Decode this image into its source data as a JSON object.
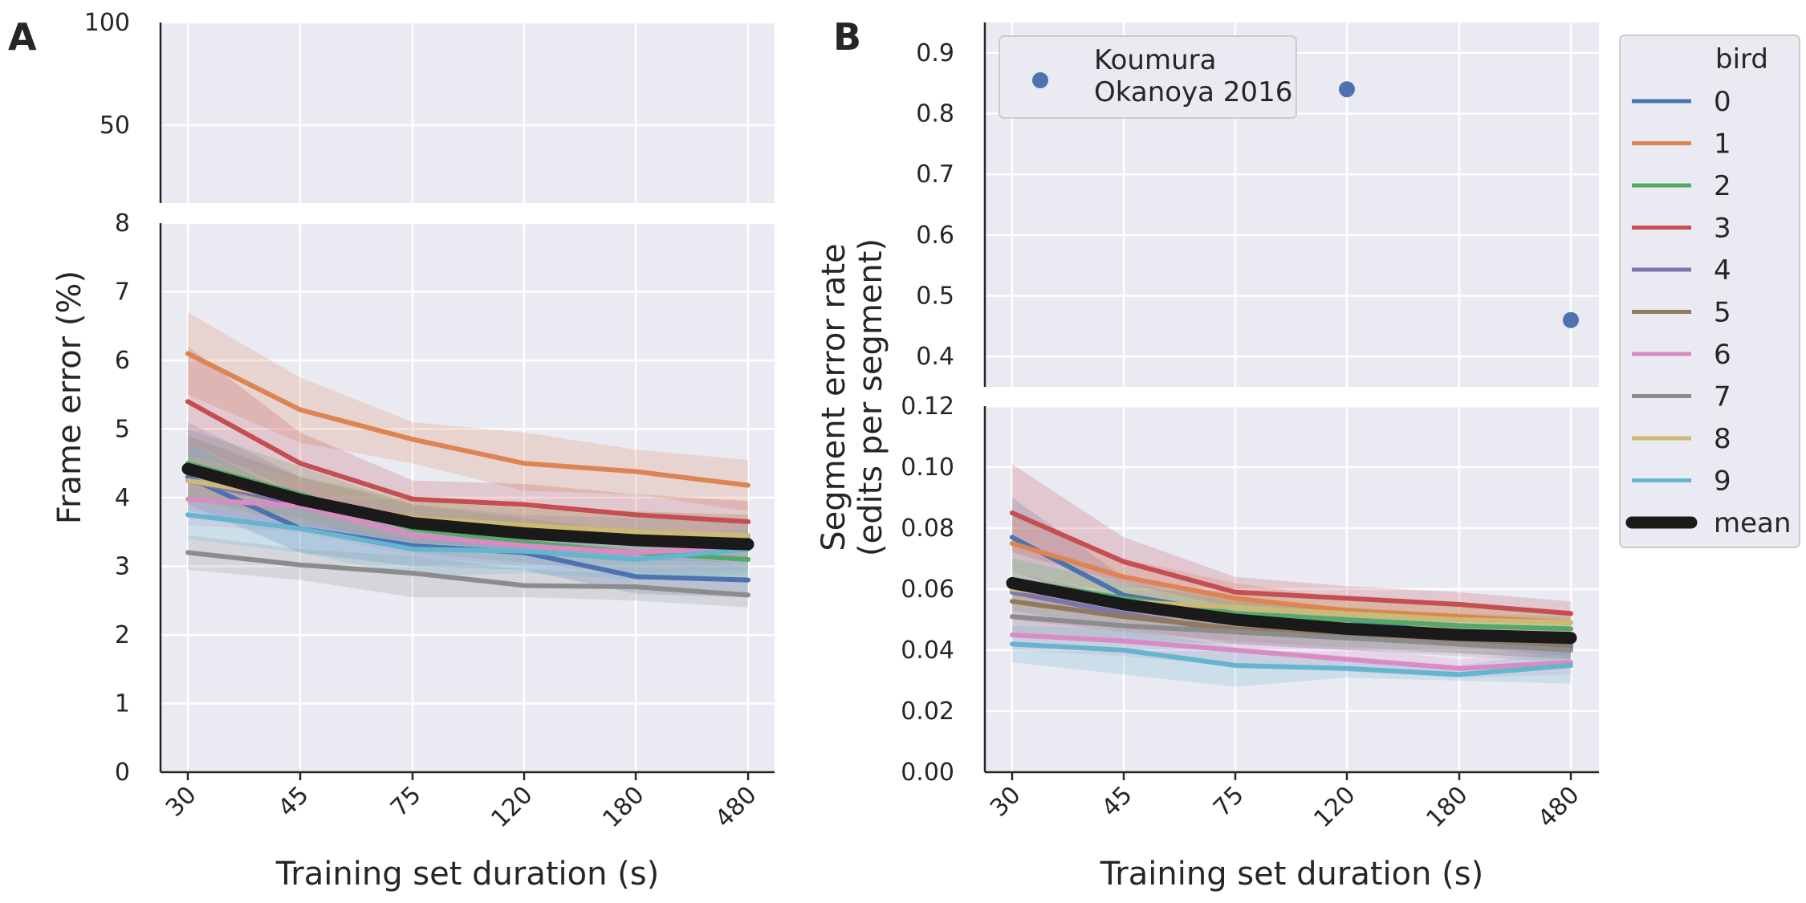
{
  "chart_data": [
    {
      "panel_label": "A",
      "type": "line",
      "xlabel": "Training set duration (s)",
      "ylabel": "Frame error (%)",
      "x": [
        "30",
        "45",
        "75",
        "120",
        "180",
        "480"
      ],
      "x_tick_labels": [
        "30",
        "45",
        "75",
        "120",
        "180",
        "480"
      ],
      "broken_axis": {
        "upper": {
          "ylim": [
            25,
            100
          ],
          "ticks": [
            "50",
            "100"
          ]
        },
        "lower": {
          "ylim": [
            0,
            8
          ],
          "ticks": [
            "0",
            "1",
            "2",
            "3",
            "4",
            "5",
            "6",
            "7",
            "8"
          ]
        }
      },
      "grid": true,
      "series": [
        {
          "name": "0",
          "color": "#4c72b0",
          "values": [
            4.3,
            3.55,
            3.3,
            3.2,
            2.85,
            2.8
          ],
          "lower": [
            3.9,
            3.2,
            3.0,
            2.95,
            2.6,
            2.55
          ],
          "upper": [
            4.8,
            4.0,
            3.65,
            3.5,
            3.15,
            3.05
          ]
        },
        {
          "name": "1",
          "color": "#dd8452",
          "values": [
            6.1,
            5.28,
            4.85,
            4.5,
            4.38,
            4.18
          ],
          "lower": [
            5.5,
            4.8,
            4.5,
            4.1,
            4.05,
            3.8
          ],
          "upper": [
            6.7,
            5.75,
            5.1,
            4.95,
            4.7,
            4.55
          ]
        },
        {
          "name": "2",
          "color": "#55a868",
          "values": [
            4.5,
            4.05,
            3.55,
            3.35,
            3.2,
            3.1
          ],
          "lower": [
            4.0,
            3.7,
            3.2,
            3.05,
            2.9,
            2.8
          ],
          "upper": [
            5.0,
            4.45,
            3.9,
            3.7,
            3.5,
            3.45
          ]
        },
        {
          "name": "3",
          "color": "#c44e52",
          "values": [
            5.4,
            4.5,
            3.98,
            3.9,
            3.75,
            3.65
          ],
          "lower": [
            4.8,
            4.05,
            3.65,
            3.55,
            3.4,
            3.35
          ],
          "upper": [
            6.2,
            4.95,
            4.25,
            4.2,
            4.05,
            3.95
          ]
        },
        {
          "name": "4",
          "color": "#8172b3",
          "values": [
            4.25,
            3.9,
            3.6,
            3.45,
            3.4,
            3.35
          ],
          "lower": [
            3.8,
            3.55,
            3.3,
            3.15,
            3.1,
            3.05
          ],
          "upper": [
            5.1,
            4.3,
            3.9,
            3.75,
            3.7,
            3.65
          ]
        },
        {
          "name": "5",
          "color": "#937860",
          "values": [
            4.45,
            3.95,
            3.65,
            3.55,
            3.45,
            3.4
          ],
          "lower": [
            4.0,
            3.6,
            3.35,
            3.25,
            3.15,
            3.1
          ],
          "upper": [
            4.9,
            4.3,
            3.95,
            3.85,
            3.8,
            3.75
          ]
        },
        {
          "name": "6",
          "color": "#da8bc3",
          "values": [
            3.98,
            3.88,
            3.45,
            3.3,
            3.2,
            3.28
          ],
          "lower": [
            3.6,
            3.5,
            3.15,
            3.0,
            2.9,
            2.95
          ],
          "upper": [
            4.35,
            4.2,
            3.75,
            3.6,
            3.5,
            3.6
          ]
        },
        {
          "name": "7",
          "color": "#8c8c8c",
          "values": [
            3.2,
            3.02,
            2.9,
            2.72,
            2.7,
            2.58
          ],
          "lower": [
            2.95,
            2.8,
            2.55,
            2.55,
            2.5,
            2.4
          ],
          "upper": [
            3.45,
            3.25,
            3.15,
            2.95,
            2.9,
            2.8
          ]
        },
        {
          "name": "8",
          "color": "#ccb974",
          "values": [
            4.25,
            3.98,
            3.7,
            3.6,
            3.5,
            3.45
          ],
          "lower": [
            3.9,
            3.65,
            3.4,
            3.3,
            3.2,
            3.15
          ],
          "upper": [
            4.6,
            4.3,
            4.0,
            3.9,
            3.8,
            3.75
          ]
        },
        {
          "name": "9",
          "color": "#64b5cd",
          "values": [
            3.75,
            3.55,
            3.25,
            3.22,
            3.1,
            3.25
          ],
          "lower": [
            3.4,
            3.2,
            2.85,
            2.9,
            2.8,
            2.9
          ],
          "upper": [
            4.05,
            3.9,
            3.55,
            3.5,
            3.4,
            3.55
          ]
        },
        {
          "name": "mean",
          "color": "#1a1a1a",
          "values": [
            4.42,
            3.97,
            3.63,
            3.48,
            3.38,
            3.32
          ]
        }
      ]
    },
    {
      "panel_label": "B",
      "type": "line",
      "xlabel": "Training set duration (s)",
      "ylabel": "Segment error rate\n(edits per segment)",
      "x": [
        "30",
        "45",
        "75",
        "120",
        "180",
        "480"
      ],
      "x_tick_labels": [
        "30",
        "45",
        "75",
        "120",
        "180",
        "480"
      ],
      "broken_axis": {
        "upper": {
          "ylim": [
            0.35,
            0.95
          ],
          "ticks": [
            "0.4",
            "0.5",
            "0.6",
            "0.7",
            "0.8",
            "0.9"
          ]
        },
        "lower": {
          "ylim": [
            0,
            0.12
          ],
          "ticks": [
            "0.00",
            "0.02",
            "0.04",
            "0.06",
            "0.08",
            "0.10",
            "0.12"
          ]
        }
      },
      "grid": true,
      "series": [
        {
          "name": "0",
          "color": "#4c72b0",
          "values": [
            0.077,
            0.058,
            0.052,
            0.05,
            0.045,
            0.042
          ],
          "lower": [
            0.066,
            0.052,
            0.047,
            0.046,
            0.041,
            0.038
          ],
          "upper": [
            0.09,
            0.064,
            0.057,
            0.054,
            0.049,
            0.046
          ]
        },
        {
          "name": "1",
          "color": "#dd8452",
          "values": [
            0.075,
            0.064,
            0.057,
            0.053,
            0.051,
            0.049
          ],
          "lower": [
            0.066,
            0.058,
            0.052,
            0.049,
            0.047,
            0.045
          ],
          "upper": [
            0.085,
            0.07,
            0.062,
            0.057,
            0.055,
            0.053
          ]
        },
        {
          "name": "2",
          "color": "#55a868",
          "values": [
            0.063,
            0.057,
            0.052,
            0.05,
            0.048,
            0.047
          ],
          "lower": [
            0.056,
            0.052,
            0.048,
            0.046,
            0.044,
            0.043
          ],
          "upper": [
            0.07,
            0.062,
            0.056,
            0.054,
            0.052,
            0.051
          ]
        },
        {
          "name": "3",
          "color": "#c44e52",
          "values": [
            0.085,
            0.069,
            0.059,
            0.057,
            0.055,
            0.052
          ],
          "lower": [
            0.072,
            0.062,
            0.054,
            0.053,
            0.051,
            0.048
          ],
          "upper": [
            0.101,
            0.077,
            0.064,
            0.061,
            0.059,
            0.056
          ]
        },
        {
          "name": "4",
          "color": "#8172b3",
          "values": [
            0.059,
            0.052,
            0.046,
            0.044,
            0.043,
            0.041
          ],
          "lower": [
            0.053,
            0.047,
            0.042,
            0.04,
            0.039,
            0.037
          ],
          "upper": [
            0.066,
            0.057,
            0.05,
            0.048,
            0.047,
            0.045
          ]
        },
        {
          "name": "5",
          "color": "#937860",
          "values": [
            0.056,
            0.051,
            0.047,
            0.045,
            0.043,
            0.041
          ],
          "lower": [
            0.05,
            0.046,
            0.043,
            0.041,
            0.039,
            0.037
          ],
          "upper": [
            0.062,
            0.056,
            0.051,
            0.049,
            0.047,
            0.045
          ]
        },
        {
          "name": "6",
          "color": "#da8bc3",
          "values": [
            0.045,
            0.043,
            0.04,
            0.037,
            0.034,
            0.036
          ],
          "lower": [
            0.04,
            0.038,
            0.035,
            0.033,
            0.031,
            0.032
          ],
          "upper": [
            0.05,
            0.048,
            0.045,
            0.041,
            0.037,
            0.04
          ]
        },
        {
          "name": "7",
          "color": "#8c8c8c",
          "values": [
            0.051,
            0.048,
            0.046,
            0.044,
            0.042,
            0.04
          ],
          "lower": [
            0.046,
            0.043,
            0.042,
            0.04,
            0.038,
            0.036
          ],
          "upper": [
            0.056,
            0.053,
            0.05,
            0.048,
            0.046,
            0.044
          ]
        },
        {
          "name": "8",
          "color": "#ccb974",
          "values": [
            0.06,
            0.056,
            0.054,
            0.052,
            0.05,
            0.049
          ],
          "lower": [
            0.054,
            0.051,
            0.049,
            0.048,
            0.046,
            0.045
          ],
          "upper": [
            0.066,
            0.061,
            0.059,
            0.056,
            0.054,
            0.053
          ]
        },
        {
          "name": "9",
          "color": "#64b5cd",
          "values": [
            0.042,
            0.04,
            0.035,
            0.034,
            0.032,
            0.035
          ],
          "lower": [
            0.036,
            0.032,
            0.028,
            0.031,
            0.03,
            0.029
          ],
          "upper": [
            0.048,
            0.047,
            0.041,
            0.038,
            0.035,
            0.04
          ]
        },
        {
          "name": "mean",
          "color": "#1a1a1a",
          "values": [
            0.062,
            0.055,
            0.05,
            0.047,
            0.045,
            0.044
          ]
        }
      ],
      "reference_points": {
        "name": "Koumura\nOkanoya 2016",
        "color": "#4c72b0",
        "points": [
          {
            "x": "120",
            "y": 0.84
          },
          {
            "x": "480",
            "y": 0.46
          }
        ]
      }
    }
  ],
  "legend": {
    "title": "bird",
    "placement": "right",
    "entries": [
      "0",
      "1",
      "2",
      "3",
      "4",
      "5",
      "6",
      "7",
      "8",
      "9",
      "mean"
    ]
  },
  "reference_legend": {
    "placement": "top-left",
    "lines": [
      "Koumura",
      "Okanoya 2016"
    ]
  }
}
